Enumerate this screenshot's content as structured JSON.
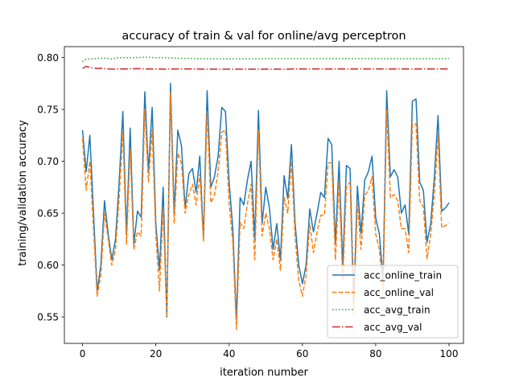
{
  "chart_data": {
    "type": "line",
    "title": "accuracy of train & val for online/avg perceptron",
    "xlabel": "iteration number",
    "ylabel": "training/validation accuracy",
    "xlim": [
      -4.95,
      103.95
    ],
    "ylim": [
      0.5245,
      0.8105
    ],
    "xticks": [
      0,
      20,
      40,
      60,
      80,
      100
    ],
    "yticks": [
      0.55,
      0.6,
      0.65,
      0.7,
      0.75,
      0.8
    ],
    "xtick_labels": [
      "0",
      "20",
      "40",
      "60",
      "80",
      "100"
    ],
    "ytick_labels": [
      "0.55",
      "0.60",
      "0.65",
      "0.70",
      "0.75",
      "0.80"
    ],
    "grid": false,
    "legend_position": "lower right",
    "series": [
      {
        "name": "acc_online_train",
        "color": "#1f77b4",
        "linestyle": "solid",
        "values": [
          0.73,
          0.69,
          0.725,
          0.65,
          0.575,
          0.6,
          0.662,
          0.63,
          0.605,
          0.625,
          0.68,
          0.748,
          0.63,
          0.732,
          0.62,
          0.652,
          0.646,
          0.767,
          0.69,
          0.752,
          0.64,
          0.595,
          0.675,
          0.55,
          0.775,
          0.65,
          0.73,
          0.715,
          0.655,
          0.688,
          0.693,
          0.67,
          0.705,
          0.625,
          0.768,
          0.675,
          0.685,
          0.705,
          0.752,
          0.748,
          0.68,
          0.635,
          0.547,
          0.665,
          0.658,
          0.682,
          0.7,
          0.625,
          0.749,
          0.64,
          0.675,
          0.655,
          0.615,
          0.64,
          0.605,
          0.686,
          0.664,
          0.716,
          0.64,
          0.6,
          0.582,
          0.6,
          0.654,
          0.632,
          0.65,
          0.67,
          0.665,
          0.722,
          0.716,
          0.62,
          0.7,
          0.598,
          0.696,
          0.693,
          0.562,
          0.676,
          0.63,
          0.682,
          0.69,
          0.705,
          0.645,
          0.63,
          0.585,
          0.768,
          0.685,
          0.692,
          0.685,
          0.65,
          0.658,
          0.63,
          0.758,
          0.76,
          0.68,
          0.672,
          0.622,
          0.64,
          0.685,
          0.744,
          0.652,
          0.655,
          0.66
        ]
      },
      {
        "name": "acc_online_val",
        "color": "#ff7f0e",
        "linestyle": "dashed",
        "values": [
          0.722,
          0.672,
          0.7,
          0.635,
          0.57,
          0.59,
          0.65,
          0.625,
          0.6,
          0.615,
          0.665,
          0.728,
          0.62,
          0.712,
          0.615,
          0.632,
          0.628,
          0.75,
          0.68,
          0.73,
          0.63,
          0.575,
          0.655,
          0.55,
          0.766,
          0.64,
          0.708,
          0.698,
          0.65,
          0.668,
          0.678,
          0.658,
          0.688,
          0.623,
          0.748,
          0.66,
          0.667,
          0.69,
          0.728,
          0.73,
          0.66,
          0.622,
          0.538,
          0.641,
          0.635,
          0.659,
          0.678,
          0.605,
          0.73,
          0.628,
          0.65,
          0.635,
          0.605,
          0.625,
          0.595,
          0.665,
          0.65,
          0.7,
          0.628,
          0.585,
          0.57,
          0.59,
          0.64,
          0.612,
          0.632,
          0.648,
          0.648,
          0.698,
          0.699,
          0.605,
          0.68,
          0.585,
          0.675,
          0.68,
          0.552,
          0.66,
          0.615,
          0.667,
          0.672,
          0.685,
          0.63,
          0.615,
          0.575,
          0.75,
          0.665,
          0.668,
          0.662,
          0.635,
          0.635,
          0.612,
          0.736,
          0.736,
          0.662,
          0.656,
          0.606,
          0.63,
          0.668,
          0.725,
          0.636,
          0.638,
          0.64
        ]
      },
      {
        "name": "acc_avg_train",
        "color": "#2ca02c",
        "linestyle": "dotted",
        "values": [
          0.796,
          0.7985,
          0.7985,
          0.7988,
          0.799,
          0.7993,
          0.7995,
          0.799,
          0.7985,
          0.7995,
          0.7998,
          0.7998,
          0.7998,
          0.7998,
          0.7999,
          0.8,
          0.8001,
          0.8003,
          0.8003,
          0.8,
          0.7998,
          0.7998,
          0.7998,
          0.7997,
          0.7995,
          0.7994,
          0.7993,
          0.7993,
          0.7992,
          0.7992,
          0.7991,
          0.799,
          0.799,
          0.799,
          0.7989,
          0.7988,
          0.7988,
          0.7988,
          0.7988,
          0.7988,
          0.7988,
          0.7988,
          0.7988,
          0.7988,
          0.7988,
          0.7988,
          0.7988,
          0.7988,
          0.7988,
          0.7989,
          0.799,
          0.799,
          0.799,
          0.799,
          0.799,
          0.799,
          0.799,
          0.799,
          0.799,
          0.799,
          0.799,
          0.799,
          0.799,
          0.799,
          0.799,
          0.799,
          0.799,
          0.799,
          0.799,
          0.799,
          0.799,
          0.799,
          0.799,
          0.799,
          0.799,
          0.799,
          0.799,
          0.799,
          0.799,
          0.799,
          0.799,
          0.799,
          0.799,
          0.799,
          0.799,
          0.799,
          0.799,
          0.799,
          0.799,
          0.799,
          0.799,
          0.799,
          0.799,
          0.799,
          0.799,
          0.799,
          0.799,
          0.799,
          0.799,
          0.799,
          0.799
        ]
      },
      {
        "name": "acc_avg_val",
        "color": "#d62728",
        "linestyle": "dashdot",
        "values": [
          0.7895,
          0.7915,
          0.7905,
          0.79,
          0.7895,
          0.7897,
          0.7893,
          0.789,
          0.7888,
          0.7888,
          0.789,
          0.789,
          0.789,
          0.7892,
          0.7892,
          0.7893,
          0.7893,
          0.789,
          0.789,
          0.789,
          0.789,
          0.7889,
          0.7888,
          0.7888,
          0.789,
          0.789,
          0.789,
          0.789,
          0.789,
          0.789,
          0.789,
          0.789,
          0.7889,
          0.7888,
          0.7888,
          0.7888,
          0.7888,
          0.7888,
          0.7888,
          0.7888,
          0.7888,
          0.7888,
          0.7888,
          0.7888,
          0.7888,
          0.7888,
          0.7888,
          0.7888,
          0.7888,
          0.7888,
          0.7888,
          0.7888,
          0.7888,
          0.7888,
          0.7888,
          0.7888,
          0.7888,
          0.789,
          0.789,
          0.789,
          0.789,
          0.789,
          0.789,
          0.789,
          0.789,
          0.789,
          0.789,
          0.789,
          0.789,
          0.789,
          0.789,
          0.789,
          0.789,
          0.789,
          0.789,
          0.789,
          0.789,
          0.789,
          0.789,
          0.789,
          0.789,
          0.789,
          0.789,
          0.789,
          0.789,
          0.789,
          0.789,
          0.789,
          0.789,
          0.789,
          0.789,
          0.789,
          0.789,
          0.789,
          0.789,
          0.789,
          0.789,
          0.789,
          0.789,
          0.789,
          0.789
        ]
      }
    ]
  }
}
